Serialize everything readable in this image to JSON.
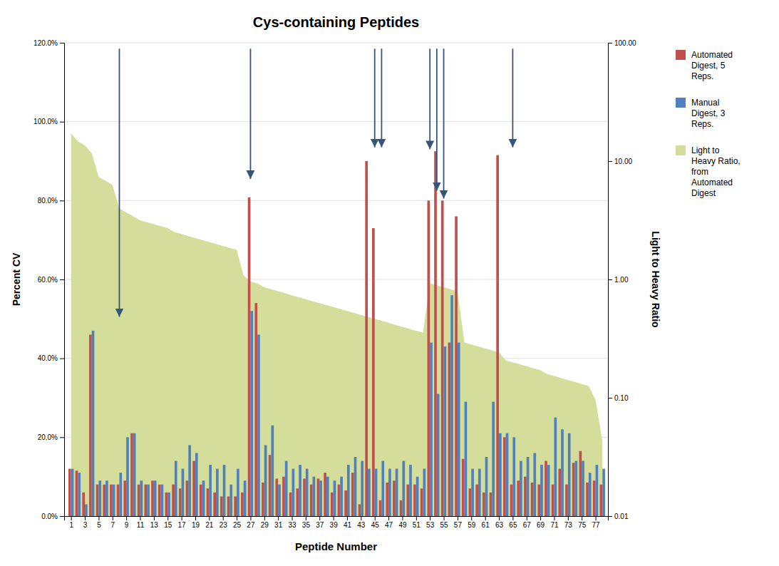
{
  "chart_data": {
    "type": "bar",
    "title": "Cys-containing Peptides",
    "x_label": "Peptide Number",
    "y_label": "Percent CV",
    "y2_label": "Light to Heavy Ratio",
    "x": [
      1,
      2,
      3,
      4,
      5,
      6,
      7,
      8,
      9,
      10,
      11,
      12,
      13,
      14,
      15,
      16,
      17,
      18,
      19,
      20,
      21,
      22,
      23,
      24,
      25,
      26,
      27,
      28,
      29,
      30,
      31,
      32,
      33,
      34,
      35,
      36,
      37,
      38,
      39,
      40,
      41,
      42,
      43,
      44,
      45,
      46,
      47,
      48,
      49,
      50,
      51,
      52,
      53,
      54,
      55,
      56,
      57,
      58,
      59,
      60,
      61,
      62,
      63,
      64,
      65,
      66,
      67,
      68,
      69,
      70,
      71,
      72,
      73,
      74,
      75,
      76,
      77,
      78
    ],
    "xlim": [
      0.0,
      78.8
    ],
    "xticks": [
      1,
      3,
      5,
      7,
      9,
      11,
      13,
      15,
      17,
      19,
      21,
      23,
      25,
      27,
      29,
      31,
      33,
      35,
      37,
      39,
      41,
      43,
      45,
      47,
      49,
      51,
      53,
      55,
      57,
      59,
      61,
      63,
      65,
      67,
      69,
      71,
      73,
      75,
      77
    ],
    "ylim": [
      0,
      1.2
    ],
    "yticks": [
      {
        "value": 0,
        "label": "0.0%"
      },
      {
        "value": 0.2,
        "label": "20.0%"
      },
      {
        "value": 0.4,
        "label": "40.0%"
      },
      {
        "value": 0.6,
        "label": "60.0%"
      },
      {
        "value": 0.8,
        "label": "80.0%"
      },
      {
        "value": 1.0,
        "label": "100.0%"
      },
      {
        "value": 1.2,
        "label": "120.0%"
      }
    ],
    "y2lim": [
      0.01,
      100.0
    ],
    "y2ticks": [
      0.01,
      {
        "value": 0.1,
        "label": "0.10"
      },
      {
        "value": 1,
        "label": "1.00"
      },
      {
        "value": 10,
        "label": "10.00"
      },
      {
        "value": 100,
        "label": "100.00"
      }
    ],
    "log": "y2",
    "grid": true,
    "legend": "right",
    "series": [
      {
        "name": "Automated\nDigest, 5\nReps.",
        "type": "bar",
        "color": "#C0504D",
        "values": [
          0.12,
          0.115,
          0.06,
          0.46,
          0.08,
          0.08,
          0.08,
          0.08,
          0.09,
          0.21,
          0.08,
          0.08,
          0.09,
          0.08,
          0.06,
          0.08,
          0.07,
          0.09,
          0.14,
          0.08,
          0.07,
          0.06,
          0.05,
          0.05,
          0.05,
          0.06,
          0.808,
          0.54,
          0.085,
          0.155,
          0.095,
          0.1,
          0.06,
          0.07,
          0.095,
          0.08,
          0.095,
          0.11,
          0.06,
          0.08,
          0.065,
          0.11,
          0.03,
          0.9,
          0.73,
          0.04,
          0.085,
          0.09,
          0.04,
          0.08,
          0.08,
          0.07,
          0.8,
          0.925,
          0.8,
          0.44,
          0.76,
          0.145,
          0.07,
          0.08,
          0.06,
          0.06,
          0.915,
          0.2,
          0.08,
          0.09,
          0.1,
          0.085,
          0.08,
          0.14,
          0.08,
          0.12,
          0.08,
          0.135,
          0.165,
          0.085,
          0.09,
          0.08
        ]
      },
      {
        "name": "Manual\nDigest, 3\nReps.",
        "type": "bar",
        "color": "#4F81BD",
        "values": [
          0.12,
          0.11,
          0.03,
          0.47,
          0.09,
          0.09,
          0.08,
          0.11,
          0.2,
          0.21,
          0.09,
          0.08,
          0.09,
          0.08,
          0.06,
          0.14,
          0.12,
          0.18,
          0.16,
          0.09,
          0.13,
          0.12,
          0.13,
          0.08,
          0.12,
          0.09,
          0.52,
          0.46,
          0.18,
          0.23,
          0.08,
          0.14,
          0.12,
          0.13,
          0.12,
          0.1,
          0.09,
          0.1,
          0.09,
          0.1,
          0.13,
          0.15,
          0.14,
          0.12,
          0.12,
          0.14,
          0.12,
          0.12,
          0.14,
          0.13,
          0.1,
          0.12,
          0.44,
          0.31,
          0.43,
          0.56,
          0.44,
          0.29,
          0.12,
          0.12,
          0.15,
          0.29,
          0.21,
          0.21,
          0.2,
          0.14,
          0.15,
          0.16,
          0.13,
          0.13,
          0.25,
          0.22,
          0.21,
          0.14,
          0.14,
          0.11,
          0.13,
          0.12
        ]
      },
      {
        "name": "Light to\nHeavy Ratio,\nfrom\nAutomated\nDigest",
        "type": "area",
        "color": "#d4de9a",
        "values": [
          0.97,
          0.95,
          0.94,
          0.92,
          0.86,
          0.85,
          0.84,
          0.78,
          0.77,
          0.76,
          0.75,
          0.745,
          0.74,
          0.735,
          0.73,
          0.72,
          0.715,
          0.71,
          0.705,
          0.7,
          0.695,
          0.69,
          0.685,
          0.68,
          0.675,
          0.61,
          0.595,
          0.59,
          0.58,
          0.575,
          0.57,
          0.565,
          0.56,
          0.555,
          0.55,
          0.545,
          0.54,
          0.535,
          0.53,
          0.525,
          0.52,
          0.515,
          0.51,
          0.505,
          0.5,
          0.495,
          0.49,
          0.485,
          0.48,
          0.475,
          0.47,
          0.465,
          0.59,
          0.585,
          0.58,
          0.575,
          0.57,
          0.44,
          0.435,
          0.43,
          0.425,
          0.42,
          0.415,
          0.395,
          0.39,
          0.385,
          0.38,
          0.375,
          0.37,
          0.36,
          0.355,
          0.35,
          0.345,
          0.34,
          0.335,
          0.33,
          0.295,
          0.19
        ]
      }
    ],
    "arrows": {
      "x": [
        8,
        27,
        45,
        46,
        53,
        54,
        55,
        65
      ],
      "y": [
        0.505,
        0.855,
        0.935,
        0.935,
        0.93,
        0.825,
        0.805,
        0.935
      ],
      "y_from": 1.185,
      "color": "#35567a"
    }
  }
}
